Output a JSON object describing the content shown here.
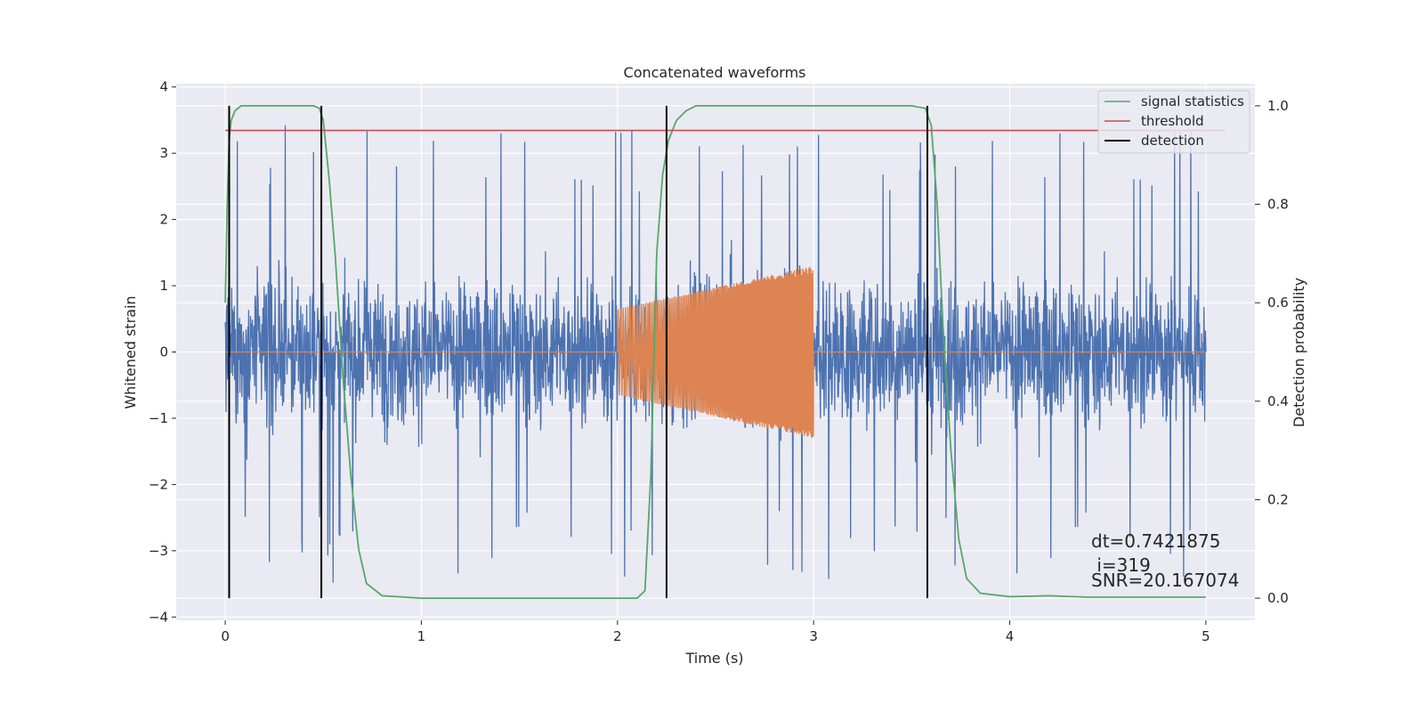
{
  "chart_data": {
    "type": "line",
    "title": "Concatenated waveforms",
    "xlabel": "Time (s)",
    "ylabel": "Whitened strain",
    "y2label": "Detection probability",
    "xlim": [
      -0.25,
      5.25
    ],
    "ylim": [
      -4.05,
      4.05
    ],
    "y2lim": [
      -0.045,
      1.045
    ],
    "xticks": [
      0,
      1,
      2,
      3,
      4,
      5
    ],
    "yticks": [
      -4,
      -3,
      -2,
      -1,
      0,
      1,
      2,
      3,
      4
    ],
    "y2ticks": [
      0.0,
      0.2,
      0.4,
      0.6,
      0.8,
      1.0
    ],
    "xtick_labels": [
      "0",
      "1",
      "2",
      "3",
      "4",
      "5"
    ],
    "ytick_labels": [
      "−4",
      "−3",
      "−2",
      "−1",
      "0",
      "1",
      "2",
      "3",
      "4"
    ],
    "y2tick_labels": [
      "0.0",
      "0.2",
      "0.4",
      "0.6",
      "0.8",
      "1.0"
    ],
    "grid": true,
    "legend_position": "top-right",
    "strain_noise": {
      "color": "#4c72b0",
      "t_range": [
        0,
        5
      ],
      "typical_amplitude": 1.9,
      "peak_amplitude": 3.5
    },
    "injected_signal": {
      "color": "#dd8452",
      "t_start": 2.0,
      "t_end": 3.0,
      "amplitude_start": 0.65,
      "amplitude_end": 1.3
    },
    "series": [
      {
        "name": "signal statistics",
        "color": "#55a868",
        "axis": "right",
        "x": [
          0,
          0.01,
          0.02,
          0.03,
          0.05,
          0.08,
          0.15,
          0.3,
          0.45,
          0.48,
          0.5,
          0.53,
          0.56,
          0.6,
          0.64,
          0.68,
          0.72,
          0.8,
          1.0,
          1.5,
          2.0,
          2.1,
          2.14,
          2.17,
          2.2,
          2.23,
          2.26,
          2.3,
          2.35,
          2.4,
          2.5,
          3.0,
          3.5,
          3.57,
          3.6,
          3.63,
          3.66,
          3.7,
          3.74,
          3.78,
          3.85,
          4.0,
          4.2,
          4.4,
          5.0
        ],
        "y": [
          0.6,
          0.8,
          0.93,
          0.97,
          0.99,
          1.0,
          1.0,
          1.0,
          1.0,
          0.995,
          0.97,
          0.85,
          0.7,
          0.45,
          0.25,
          0.1,
          0.03,
          0.005,
          0.0,
          0.0,
          0.0,
          0.0,
          0.015,
          0.25,
          0.7,
          0.86,
          0.93,
          0.97,
          0.99,
          1.0,
          1.0,
          1.0,
          1.0,
          0.995,
          0.96,
          0.8,
          0.55,
          0.3,
          0.12,
          0.04,
          0.01,
          0.003,
          0.005,
          0.002,
          0.002
        ]
      },
      {
        "name": "threshold",
        "color": "#c44e52",
        "axis": "right",
        "x": [
          0,
          5.1
        ],
        "y": [
          0.95,
          0.95
        ]
      },
      {
        "name": "detection",
        "color": "#000000",
        "axis": "right",
        "vlines": [
          0.02,
          0.49,
          2.25,
          3.58
        ],
        "y": [
          0.0,
          1.0
        ]
      }
    ],
    "annotations": [
      "dt=0.7421875",
      " i=319",
      "SNR=20.167074"
    ]
  }
}
